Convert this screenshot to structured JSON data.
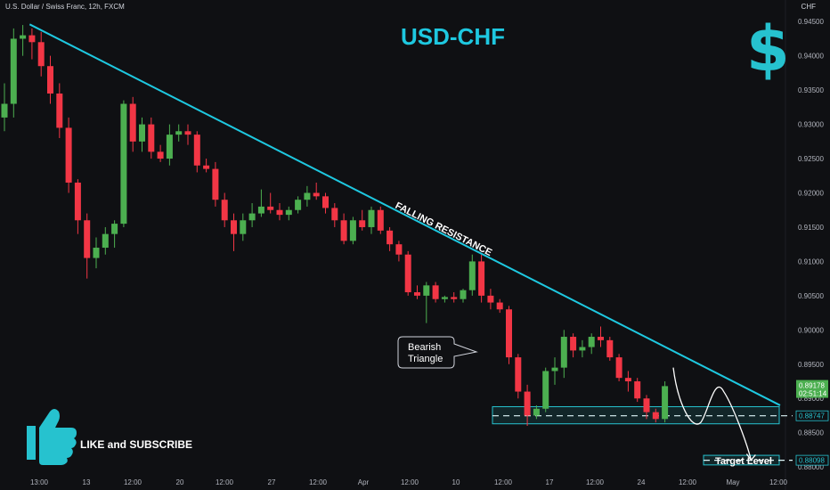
{
  "header": {
    "symbol_label": "U.S. Dollar / Swiss Franc, 12h, FXCM",
    "currency": "CHF"
  },
  "annotations": {
    "title": "USD-CHF",
    "dollar_icon": "$",
    "trendline_label": "FALLING RESISTANCE",
    "callout_line1": "Bearish",
    "callout_line2": "Triangle",
    "like_subscribe": "LIKE and SUBSCRIBE",
    "target_label": "Target Level"
  },
  "colors": {
    "background": "#0f1013",
    "bull": "#4caf50",
    "bear": "#f23645",
    "trendline": "#1ec8e0",
    "accent": "#26c2cf"
  },
  "chart_data": {
    "type": "candlestick",
    "timeframe": "12h",
    "y_axis": {
      "ticks": [
        "0.94500",
        "0.94000",
        "0.93500",
        "0.93000",
        "0.92500",
        "0.92000",
        "0.91500",
        "0.91000",
        "0.90500",
        "0.90000",
        "0.89500",
        "0.89000",
        "0.88500",
        "0.88000"
      ],
      "range": [
        0.8795,
        0.9462
      ]
    },
    "x_axis": {
      "ticks": [
        "13:00",
        "13",
        "12:00",
        "20",
        "12:00",
        "27",
        "12:00",
        "Apr",
        "12:00",
        "10",
        "12:00",
        "17",
        "12:00",
        "24",
        "12:00",
        "May",
        "12:00"
      ]
    },
    "price_labels": {
      "current_price": "0.89178",
      "countdown": "02:51:14",
      "support_level": "0.88747",
      "target_level": "0.88098"
    },
    "levels": {
      "support_zone": [
        0.8863,
        0.8888
      ],
      "support_line": 0.88747,
      "target_zone": [
        0.8803,
        0.8817
      ],
      "target_line": 0.88098
    },
    "trendline": {
      "start": {
        "candle": 1,
        "price": 0.9446
      },
      "end": {
        "candle": 81,
        "price": 0.889
      }
    },
    "projection": [
      {
        "candle": 70,
        "price": 0.8945
      },
      {
        "candle": 73,
        "price": 0.8865
      },
      {
        "candle": 75.5,
        "price": 0.891
      },
      {
        "candle": 78,
        "price": 0.881
      }
    ],
    "candles": [
      [
        0.931,
        0.936,
        0.929,
        0.933
      ],
      [
        0.933,
        0.944,
        0.931,
        0.9425
      ],
      [
        0.9425,
        0.9445,
        0.94,
        0.943
      ],
      [
        0.943,
        0.944,
        0.9395,
        0.942
      ],
      [
        0.942,
        0.9435,
        0.937,
        0.9385
      ],
      [
        0.9385,
        0.94,
        0.933,
        0.9345
      ],
      [
        0.9345,
        0.936,
        0.928,
        0.9295
      ],
      [
        0.9295,
        0.931,
        0.92,
        0.9215
      ],
      [
        0.9215,
        0.922,
        0.914,
        0.916
      ],
      [
        0.916,
        0.917,
        0.9075,
        0.9105
      ],
      [
        0.9105,
        0.9135,
        0.909,
        0.912
      ],
      [
        0.912,
        0.915,
        0.911,
        0.914
      ],
      [
        0.914,
        0.916,
        0.912,
        0.9155
      ],
      [
        0.9155,
        0.9335,
        0.915,
        0.933
      ],
      [
        0.933,
        0.934,
        0.926,
        0.9275
      ],
      [
        0.9275,
        0.931,
        0.926,
        0.93
      ],
      [
        0.93,
        0.931,
        0.925,
        0.926
      ],
      [
        0.926,
        0.927,
        0.9245,
        0.925
      ],
      [
        0.925,
        0.93,
        0.924,
        0.9285
      ],
      [
        0.9285,
        0.93,
        0.9275,
        0.929
      ],
      [
        0.929,
        0.93,
        0.927,
        0.9285
      ],
      [
        0.9285,
        0.929,
        0.923,
        0.924
      ],
      [
        0.924,
        0.925,
        0.923,
        0.9235
      ],
      [
        0.9235,
        0.9245,
        0.918,
        0.919
      ],
      [
        0.919,
        0.92,
        0.915,
        0.916
      ],
      [
        0.916,
        0.917,
        0.9115,
        0.914
      ],
      [
        0.914,
        0.917,
        0.913,
        0.916
      ],
      [
        0.916,
        0.9185,
        0.915,
        0.917
      ],
      [
        0.917,
        0.9205,
        0.9165,
        0.918
      ],
      [
        0.918,
        0.92,
        0.917,
        0.9175
      ],
      [
        0.9175,
        0.9185,
        0.916,
        0.9168
      ],
      [
        0.9168,
        0.918,
        0.916,
        0.9175
      ],
      [
        0.9175,
        0.9195,
        0.917,
        0.919
      ],
      [
        0.919,
        0.921,
        0.918,
        0.92
      ],
      [
        0.92,
        0.9215,
        0.919,
        0.9195
      ],
      [
        0.9195,
        0.92,
        0.917,
        0.9178
      ],
      [
        0.9178,
        0.9185,
        0.915,
        0.916
      ],
      [
        0.916,
        0.917,
        0.9125,
        0.913
      ],
      [
        0.913,
        0.9165,
        0.9125,
        0.916
      ],
      [
        0.916,
        0.9175,
        0.9145,
        0.915
      ],
      [
        0.915,
        0.918,
        0.914,
        0.9175
      ],
      [
        0.9175,
        0.918,
        0.914,
        0.9145
      ],
      [
        0.9145,
        0.915,
        0.9115,
        0.9125
      ],
      [
        0.9125,
        0.913,
        0.91,
        0.911
      ],
      [
        0.911,
        0.9115,
        0.905,
        0.9055
      ],
      [
        0.9055,
        0.9065,
        0.9045,
        0.905
      ],
      [
        0.905,
        0.907,
        0.901,
        0.9065
      ],
      [
        0.9065,
        0.907,
        0.904,
        0.9045
      ],
      [
        0.9045,
        0.905,
        0.904,
        0.9048
      ],
      [
        0.9048,
        0.9055,
        0.904,
        0.9045
      ],
      [
        0.9045,
        0.906,
        0.904,
        0.9058
      ],
      [
        0.9058,
        0.911,
        0.905,
        0.91
      ],
      [
        0.91,
        0.911,
        0.904,
        0.905
      ],
      [
        0.905,
        0.906,
        0.903,
        0.904
      ],
      [
        0.904,
        0.9045,
        0.9025,
        0.903
      ],
      [
        0.903,
        0.9035,
        0.895,
        0.896
      ],
      [
        0.896,
        0.8965,
        0.89,
        0.891
      ],
      [
        0.891,
        0.892,
        0.886,
        0.8875
      ],
      [
        0.8875,
        0.889,
        0.887,
        0.8885
      ],
      [
        0.8885,
        0.8945,
        0.888,
        0.894
      ],
      [
        0.894,
        0.896,
        0.892,
        0.8945
      ],
      [
        0.8945,
        0.9,
        0.893,
        0.899
      ],
      [
        0.899,
        0.8995,
        0.896,
        0.897
      ],
      [
        0.897,
        0.8985,
        0.896,
        0.8975
      ],
      [
        0.8975,
        0.8995,
        0.8965,
        0.899
      ],
      [
        0.899,
        0.9005,
        0.8975,
        0.8985
      ],
      [
        0.8985,
        0.899,
        0.8955,
        0.896
      ],
      [
        0.896,
        0.8965,
        0.8925,
        0.893
      ],
      [
        0.893,
        0.894,
        0.891,
        0.8925
      ],
      [
        0.8925,
        0.893,
        0.8895,
        0.89
      ],
      [
        0.89,
        0.8905,
        0.887,
        0.888
      ],
      [
        0.888,
        0.8885,
        0.8865,
        0.887
      ],
      [
        0.887,
        0.8925,
        0.8865,
        0.8918
      ]
    ]
  }
}
